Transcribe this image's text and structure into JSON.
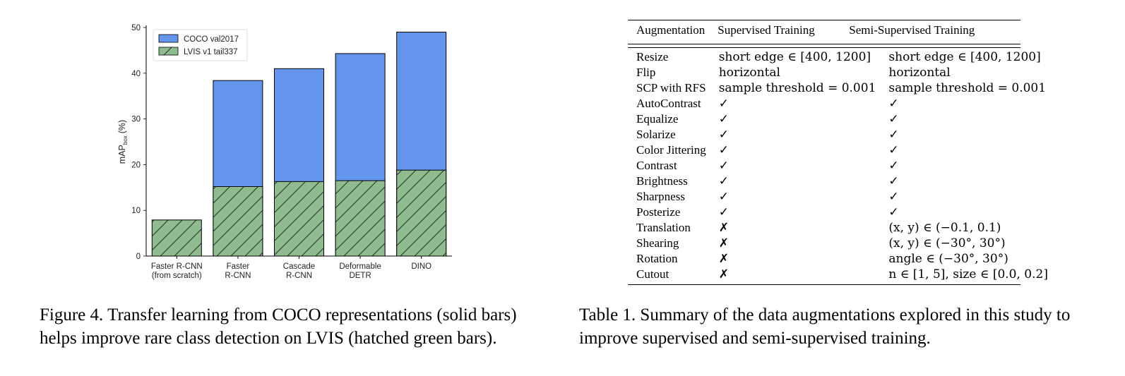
{
  "figure": {
    "caption": "Figure 4. Transfer learning from COCO representations (solid bars) helps improve rare class detection on LVIS (hatched green bars)."
  },
  "chart_data": {
    "type": "bar",
    "title": "",
    "xlabel": "",
    "ylabel": "mAP",
    "ylabel_subscript": "box",
    "ylabel_unit": "(%)",
    "ylim": [
      0,
      50
    ],
    "yticks": [
      "0",
      "10",
      "20",
      "30",
      "40",
      "50"
    ],
    "categories": [
      [
        "Faster R-CNN",
        "(from scratch)"
      ],
      [
        "Faster",
        "R-CNN"
      ],
      [
        "Cascade",
        "R-CNN"
      ],
      [
        "Deformable",
        "DETR"
      ],
      [
        "DINO",
        ""
      ]
    ],
    "series": [
      {
        "name": "COCO val2017",
        "values": [
          null,
          38.4,
          41.0,
          44.3,
          49.0
        ],
        "color": "#6495ED",
        "pattern": "solid"
      },
      {
        "name": "LVIS v1 tail337",
        "values": [
          7.9,
          15.2,
          16.3,
          16.5,
          18.8
        ],
        "color": "#8FBC8F",
        "pattern": "hatched"
      }
    ],
    "legend_position": "top-left",
    "grid": false
  },
  "table": {
    "caption": "Table 1. Summary of the data augmentations explored in this study to improve supervised and semi-supervised training.",
    "headers": [
      "Augmentation",
      "Supervised Training",
      "Semi-Supervised Training"
    ],
    "rows": [
      [
        "Resize",
        "short edge ∈ [400, 1200]",
        "short edge ∈ [400, 1200]"
      ],
      [
        "Flip",
        "horizontal",
        "horizontal"
      ],
      [
        "SCP with RFS",
        "sample threshold = 0.001",
        "sample threshold = 0.001"
      ],
      [
        "AutoContrast",
        "✓",
        "✓"
      ],
      [
        "Equalize",
        "✓",
        "✓"
      ],
      [
        "Solarize",
        "✓",
        "✓"
      ],
      [
        "Color Jittering",
        "✓",
        "✓"
      ],
      [
        "Contrast",
        "✓",
        "✓"
      ],
      [
        "Brightness",
        "✓",
        "✓"
      ],
      [
        "Sharpness",
        "✓",
        "✓"
      ],
      [
        "Posterize",
        "✓",
        "✓"
      ],
      [
        "Translation",
        "✗",
        "(x, y) ∈ (−0.1, 0.1)"
      ],
      [
        "Shearing",
        "✗",
        "(x, y) ∈ (−30°, 30°)"
      ],
      [
        "Rotation",
        "✗",
        "angle ∈ (−30°, 30°)"
      ],
      [
        "Cutout",
        "✗",
        "n ∈ [1, 5], size ∈ [0.0, 0.2]"
      ]
    ]
  }
}
